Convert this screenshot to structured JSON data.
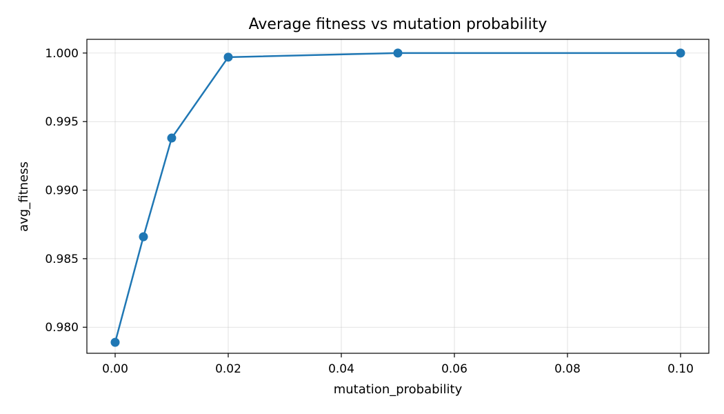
{
  "chart_data": {
    "type": "line",
    "title": "Average fitness vs mutation probability",
    "xlabel": "mutation_probability",
    "ylabel": "avg_fitness",
    "xlim": [
      -0.005,
      0.105
    ],
    "ylim": [
      0.9781,
      1.001
    ],
    "x_ticks": [
      0.0,
      0.02,
      0.04,
      0.06,
      0.08,
      0.1
    ],
    "x_tick_labels": [
      "0.00",
      "0.02",
      "0.04",
      "0.06",
      "0.08",
      "0.10"
    ],
    "y_ticks": [
      0.98,
      0.985,
      0.99,
      0.995,
      1.0
    ],
    "y_tick_labels": [
      "0.980",
      "0.985",
      "0.990",
      "0.995",
      "1.000"
    ],
    "grid": true,
    "legend": "none",
    "series": [
      {
        "color": "#1f77b4",
        "marker": "circle",
        "x": [
          0.0,
          0.005,
          0.01,
          0.02,
          0.05,
          0.1
        ],
        "y": [
          0.9789,
          0.9866,
          0.9938,
          0.9997,
          1.0,
          1.0
        ]
      }
    ]
  }
}
